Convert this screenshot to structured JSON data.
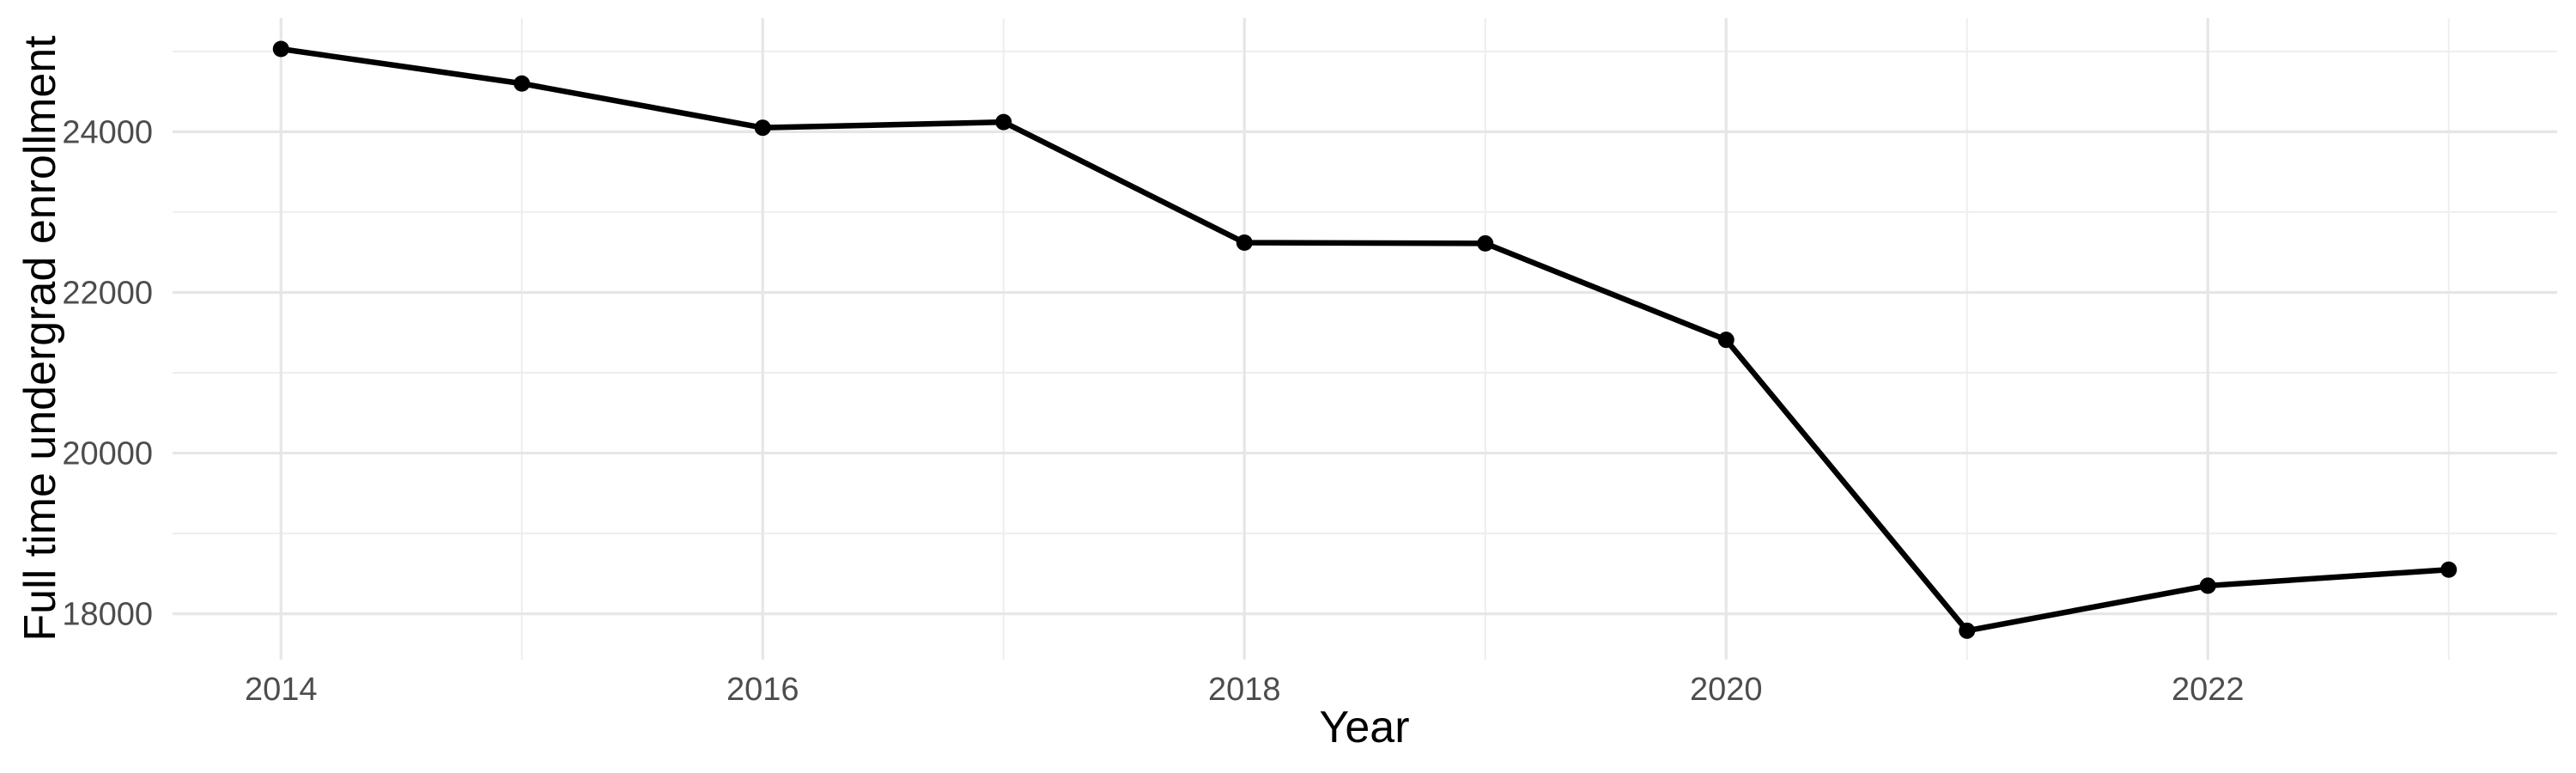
{
  "chart_data": {
    "type": "line",
    "title": "",
    "xlabel": "Year",
    "ylabel": "Full time undergrad enrollment",
    "x": [
      2014,
      2015,
      2016,
      2017,
      2018,
      2019,
      2020,
      2021,
      2022,
      2023
    ],
    "series": [
      {
        "name": "Full time undergrad enrollment",
        "values": [
          25030,
          24600,
          24050,
          24120,
          22620,
          22610,
          21410,
          17790,
          18350,
          18550
        ]
      }
    ],
    "xticks_major": [
      2014,
      2016,
      2018,
      2020,
      2022
    ],
    "xticks_minor": [
      2015,
      2017,
      2019,
      2021,
      2023
    ],
    "yticks_major": [
      18000,
      20000,
      22000,
      24000
    ],
    "yticks_minor": [
      19000,
      21000,
      23000,
      25000
    ],
    "xtick_labels": [
      "2014",
      "2016",
      "2018",
      "2020",
      "2022"
    ],
    "ytick_labels": [
      "18000",
      "20000",
      "22000",
      "24000"
    ],
    "xlim": [
      2013.55,
      2023.45
    ],
    "ylim": [
      17430,
      25415
    ],
    "grid": true,
    "legend": "none",
    "marker": "circle",
    "colors": {
      "line": "#000000",
      "point": "#000000",
      "grid_major": "#e6e6e6",
      "grid_minor": "#eeeeee",
      "tick_label": "#4d4d4d",
      "axis_title": "#000000",
      "background": "#ffffff"
    }
  }
}
